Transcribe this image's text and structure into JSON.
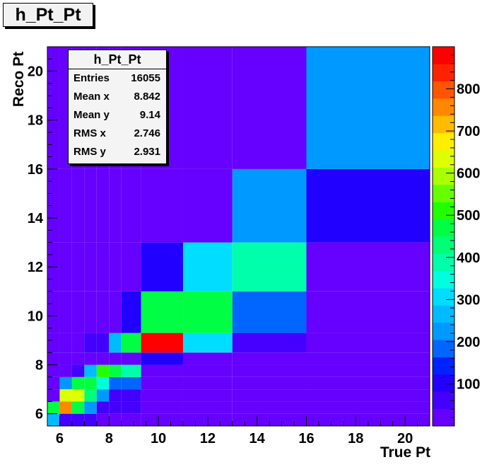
{
  "title": "h_Pt_Pt",
  "stats": {
    "name": "h_Pt_Pt",
    "rows": [
      {
        "label": "Entries",
        "value": "16055"
      },
      {
        "label": "Mean x",
        "value": "8.842"
      },
      {
        "label": "Mean y",
        "value": "9.14"
      },
      {
        "label": "RMS x",
        "value": "2.746"
      },
      {
        "label": "RMS y",
        "value": "2.931"
      }
    ]
  },
  "chart_data": {
    "type": "heatmap",
    "xlabel": "True Pt",
    "ylabel": "Reco Pt",
    "xlim": [
      5.5,
      21
    ],
    "ylim": [
      5.5,
      21
    ],
    "x_ticks": [
      6,
      8,
      10,
      12,
      14,
      16,
      18,
      20
    ],
    "y_ticks": [
      6,
      8,
      10,
      12,
      14,
      16,
      18,
      20
    ],
    "z_range": [
      0,
      900
    ],
    "z_ticks": [
      100,
      200,
      300,
      400,
      500,
      600,
      700,
      800
    ],
    "x_edges": [
      5.5,
      6,
      6.5,
      7,
      7.5,
      8,
      8.5,
      9.3,
      11,
      13,
      16,
      21
    ],
    "y_edges": [
      5.5,
      6,
      6.5,
      7,
      7.5,
      8,
      8.5,
      9.3,
      11,
      13,
      16,
      21
    ],
    "values": [
      [
        280,
        50,
        80,
        80,
        40,
        20,
        20,
        20,
        20,
        20,
        20
      ],
      [
        450,
        760,
        450,
        220,
        60,
        60,
        60,
        20,
        20,
        20,
        20
      ],
      [
        20,
        640,
        620,
        420,
        240,
        60,
        60,
        20,
        20,
        20,
        20
      ],
      [
        20,
        230,
        470,
        460,
        330,
        200,
        200,
        20,
        20,
        20,
        20
      ],
      [
        20,
        20,
        80,
        280,
        500,
        480,
        380,
        20,
        20,
        20,
        20
      ],
      [
        20,
        20,
        20,
        20,
        20,
        20,
        20,
        90,
        20,
        20,
        20
      ],
      [
        20,
        20,
        20,
        80,
        60,
        250,
        470,
        880,
        320,
        60,
        20
      ],
      [
        20,
        20,
        20,
        20,
        20,
        40,
        90,
        470,
        470,
        200,
        20
      ],
      [
        20,
        20,
        20,
        20,
        20,
        20,
        20,
        90,
        300,
        400,
        20
      ],
      [
        20,
        20,
        20,
        20,
        20,
        20,
        20,
        20,
        20,
        220,
        90
      ],
      [
        20,
        20,
        20,
        20,
        20,
        20,
        20,
        20,
        20,
        20,
        220
      ]
    ],
    "palette": [
      "#6600ff",
      "#4400ff",
      "#2200ff",
      "#0022ff",
      "#0066ff",
      "#0099ff",
      "#00bbff",
      "#00ddff",
      "#00ffdd",
      "#00ffaa",
      "#00ff77",
      "#00ff44",
      "#22ff00",
      "#66ff00",
      "#aaff00",
      "#ddff00",
      "#ffee00",
      "#ffbb00",
      "#ff8800",
      "#ff5500",
      "#ff2200",
      "#ff0000"
    ],
    "grid": false
  }
}
